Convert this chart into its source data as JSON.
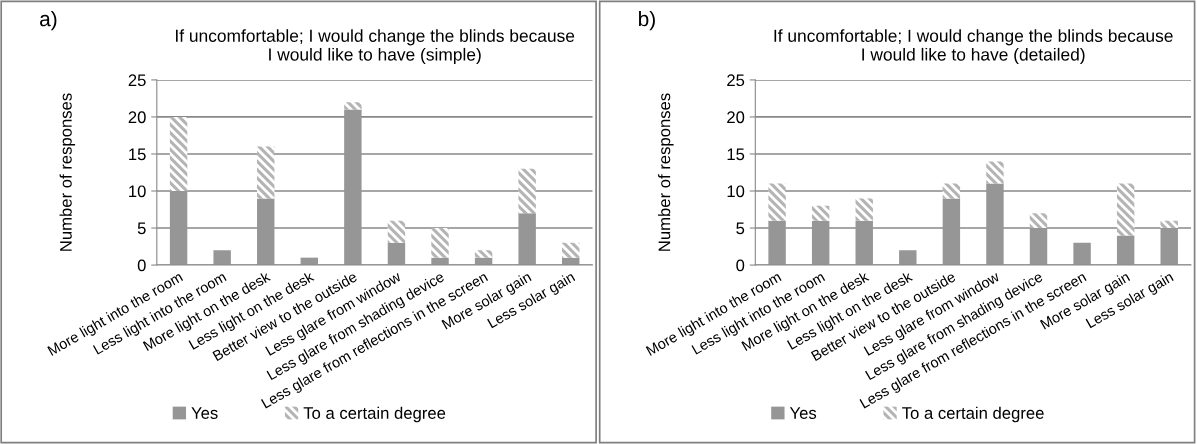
{
  "chart_data": [
    {
      "type": "bar",
      "title": "If uncomfortable; I would change the blinds because\nI would like to have (simple)",
      "ylabel": "Number of responses",
      "annotations": [
        "a)"
      ],
      "categories": [
        "More light into the room",
        "Less light into the room",
        "More light on the desk",
        "Less light on the desk",
        "Better view to the outside",
        "Less glare from window",
        "Less glare from shading device",
        "Less glare from reflections in the screen",
        "More solar gain",
        "Less solar gain"
      ],
      "stacked": true,
      "series": [
        {
          "name": "Yes",
          "color": "#969696",
          "values": [
            10,
            2,
            9,
            1,
            21,
            3,
            1,
            1,
            7,
            1
          ]
        },
        {
          "name": "To a certain degree",
          "color": "#b4b4b4",
          "values": [
            10,
            0,
            7,
            0,
            1,
            3,
            4,
            1,
            6,
            2
          ]
        }
      ],
      "ylim": [
        0,
        25
      ],
      "yticks": [
        0,
        5,
        10,
        15,
        20,
        25
      ],
      "grid": "y",
      "legend": "bottom"
    },
    {
      "type": "bar",
      "title": "If uncomfortable; I would change the blinds because\nI would like to have (detailed)",
      "ylabel": "Number of responses",
      "annotations": [
        "b)"
      ],
      "categories": [
        "More light into the room",
        "Less light into the room",
        "More light on the desk",
        "Less light on the desk",
        "Better view to the outside",
        "Less glare from window",
        "Less glare from shading device",
        "Less glare from reflections in the screen",
        "More solar gain",
        "Less solar gain"
      ],
      "stacked": true,
      "series": [
        {
          "name": "Yes",
          "color": "#969696",
          "values": [
            6,
            6,
            6,
            2,
            9,
            11,
            5,
            3,
            4,
            5
          ]
        },
        {
          "name": "To a certain degree",
          "color": "#b4b4b4",
          "values": [
            5,
            2,
            3,
            0,
            2,
            3,
            2,
            0,
            7,
            1
          ]
        }
      ],
      "ylim": [
        0,
        25
      ],
      "yticks": [
        0,
        5,
        10,
        15,
        20,
        25
      ],
      "grid": "y",
      "legend": "bottom"
    }
  ]
}
